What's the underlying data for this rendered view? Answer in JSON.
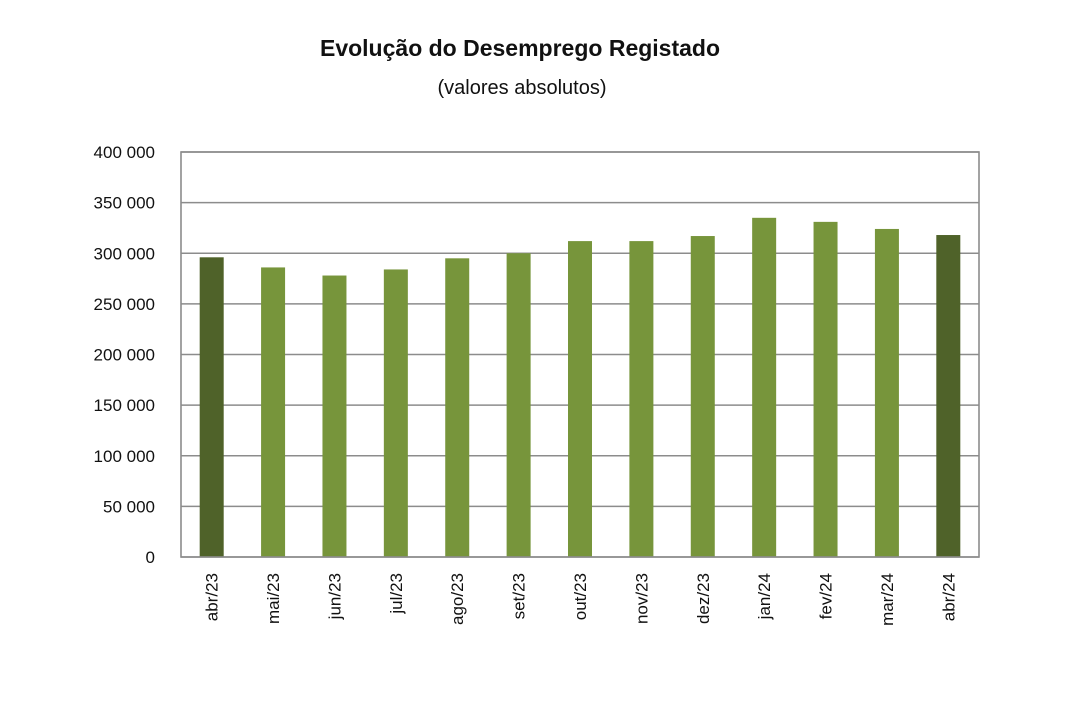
{
  "chart_data": {
    "type": "bar",
    "title": "Evolução do Desemprego Registado",
    "subtitle": "(valores absolutos)",
    "categories": [
      "abr/23",
      "mai/23",
      "jun/23",
      "jul/23",
      "ago/23",
      "set/23",
      "out/23",
      "nov/23",
      "dez/23",
      "jan/24",
      "fev/24",
      "mar/24",
      "abr/24"
    ],
    "values": [
      296000,
      286000,
      278000,
      284000,
      295000,
      300000,
      312000,
      312000,
      317000,
      335000,
      331000,
      324000,
      318000
    ],
    "highlighted": [
      true,
      false,
      false,
      false,
      false,
      false,
      false,
      false,
      false,
      false,
      false,
      false,
      true
    ],
    "ylim": [
      0,
      400000
    ],
    "yticks": [
      0,
      50000,
      100000,
      150000,
      200000,
      250000,
      300000,
      350000,
      400000
    ],
    "ytick_labels": [
      "0",
      "50 000",
      "100 000",
      "150 000",
      "200 000",
      "250 000",
      "300 000",
      "350 000",
      "400 000"
    ],
    "grid": true,
    "colors": {
      "bar": "#77953b",
      "bar_highlight": "#4f6229",
      "grid": "#8c8c8c"
    }
  }
}
